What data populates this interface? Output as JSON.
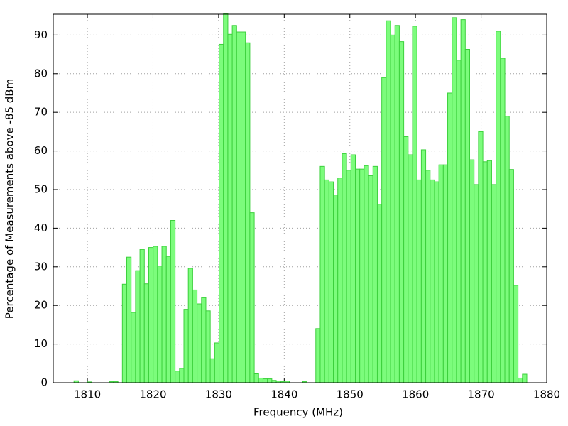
{
  "chart_data": {
    "type": "histogram",
    "x_label": "Frequency (MHz)",
    "y_label": "Percentage of Measurements above -85 dBm",
    "color": "#7cfc7c",
    "edge_color": "#3cd03c",
    "grid": true,
    "xlim": [
      1804.8,
      1880
    ],
    "ylim": [
      0,
      95.4
    ],
    "xticks": [
      1810,
      1820,
      1830,
      1840,
      1850,
      1860,
      1870,
      1880
    ],
    "yticks": [
      0,
      10,
      20,
      30,
      40,
      50,
      60,
      70,
      80,
      90
    ],
    "bins": [
      1807.29,
      1807.96,
      1808.63,
      1809.3,
      1809.97,
      1810.64,
      1811.31,
      1811.98,
      1812.65,
      1813.32,
      1813.99,
      1814.66,
      1815.33,
      1816.0,
      1816.67,
      1817.34,
      1818.01,
      1818.68,
      1819.35,
      1820.02,
      1820.69,
      1821.36,
      1822.03,
      1822.7,
      1823.37,
      1824.04,
      1824.71,
      1825.38,
      1826.05,
      1826.72,
      1827.39,
      1828.06,
      1828.73,
      1829.4,
      1830.07,
      1830.74,
      1831.41,
      1832.08,
      1832.75,
      1833.42,
      1834.09,
      1834.76,
      1835.43,
      1836.1,
      1836.77,
      1837.44,
      1838.11,
      1838.78,
      1839.45,
      1840.12,
      1840.79,
      1841.46,
      1842.13,
      1842.8,
      1843.47,
      1844.14,
      1844.81,
      1845.48,
      1846.15,
      1846.82,
      1847.49,
      1848.16,
      1848.83,
      1849.5,
      1850.17,
      1850.84,
      1851.51,
      1852.18,
      1852.85,
      1853.52,
      1854.19,
      1854.86,
      1855.53,
      1856.2,
      1856.87,
      1857.54,
      1858.21,
      1858.88,
      1859.55,
      1860.22,
      1860.89,
      1861.56,
      1862.23,
      1862.9,
      1863.57,
      1864.24,
      1864.91,
      1865.58,
      1866.25,
      1866.92,
      1867.59,
      1868.26,
      1868.93,
      1869.6,
      1870.27,
      1870.94,
      1871.61,
      1872.28,
      1872.95,
      1873.62,
      1874.29,
      1874.96,
      1875.63,
      1876.3,
      1876.97
    ],
    "values": [
      0,
      0.5,
      0,
      0,
      0.2,
      0,
      0,
      0,
      0,
      0.3,
      0.3,
      0,
      25.5,
      32.5,
      18.2,
      29,
      34.5,
      25.6,
      35,
      35.3,
      30.2,
      35.3,
      32.7,
      42,
      3,
      3.7,
      19,
      29.6,
      24,
      20.4,
      22,
      18.6,
      6.2,
      10.3,
      87.6,
      95.5,
      90.2,
      92.5,
      90.8,
      90.8,
      88,
      44,
      2.3,
      1.2,
      1,
      1,
      0.6,
      0.4,
      0.3,
      0.4,
      0,
      0,
      0,
      0.3,
      0,
      0,
      14,
      56,
      52.5,
      52,
      48.6,
      53,
      59.3,
      55,
      59,
      55.3,
      55.3,
      56.2,
      53.6,
      56,
      46.2,
      79,
      93.7,
      90,
      92.5,
      88.3,
      63.7,
      59,
      92.3,
      52.5,
      60.3,
      55,
      52.5,
      52,
      56.4,
      56.4,
      75,
      94.5,
      83.5,
      94,
      86.3,
      57.7,
      51.3,
      65,
      57.2,
      57.5,
      51.3,
      91,
      84,
      69,
      55.2,
      25.2,
      1.2,
      2.2
    ]
  }
}
